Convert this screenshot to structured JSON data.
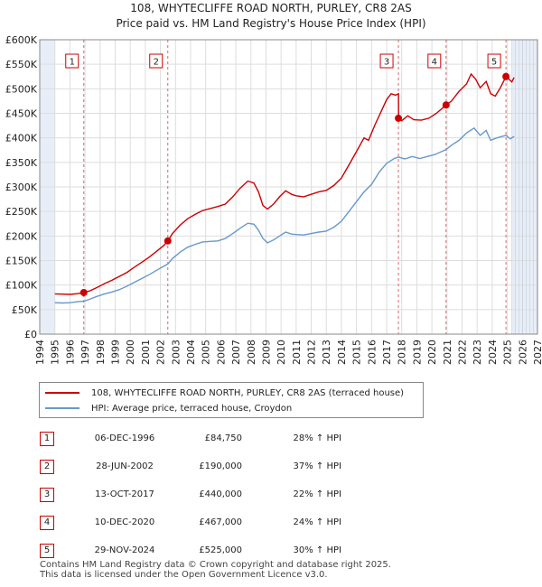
{
  "title": "108, WHYTECLIFFE ROAD NORTH, PURLEY, CR8 2AS",
  "subtitle": "Price paid vs. HM Land Registry's House Price Index (HPI)",
  "colors": {
    "property": "#cc0000",
    "hpi": "#6699cc",
    "marker_fill": "#cc0000",
    "band": "#e8eef7"
  },
  "chart_data": {
    "type": "line",
    "title": "108, WHYTECLIFFE ROAD NORTH, PURLEY, CR8 2AS",
    "xlabel": "",
    "ylabel": "",
    "xlim": [
      1994,
      2027
    ],
    "ylim": [
      0,
      600000
    ],
    "x_ticks": [
      "1994",
      "1995",
      "1996",
      "1997",
      "1998",
      "1999",
      "2000",
      "2001",
      "2002",
      "2003",
      "2004",
      "2005",
      "2006",
      "2007",
      "2008",
      "2009",
      "2010",
      "2011",
      "2012",
      "2013",
      "2014",
      "2015",
      "2016",
      "2017",
      "2018",
      "2019",
      "2020",
      "2021",
      "2022",
      "2023",
      "2024",
      "2025",
      "2026",
      "2027"
    ],
    "y_ticks": [
      {
        "value": 0,
        "label": "£0"
      },
      {
        "value": 50000,
        "label": "£50K"
      },
      {
        "value": 100000,
        "label": "£100K"
      },
      {
        "value": 150000,
        "label": "£150K"
      },
      {
        "value": 200000,
        "label": "£200K"
      },
      {
        "value": 250000,
        "label": "£250K"
      },
      {
        "value": 300000,
        "label": "£300K"
      },
      {
        "value": 350000,
        "label": "£350K"
      },
      {
        "value": 400000,
        "label": "£400K"
      },
      {
        "value": 450000,
        "label": "£450K"
      },
      {
        "value": 500000,
        "label": "£500K"
      },
      {
        "value": 550000,
        "label": "£550K"
      },
      {
        "value": 600000,
        "label": "£600K"
      }
    ],
    "shaded_ranges": [
      [
        1994,
        1995
      ],
      [
        2025.3,
        2027
      ]
    ],
    "series": [
      {
        "name": "108, WHYTECLIFFE ROAD NORTH, PURLEY, CR8 2AS (terraced house)",
        "color": "#cc0000",
        "points": [
          [
            1995,
            82000
          ],
          [
            1995.5,
            81500
          ],
          [
            1996,
            81000
          ],
          [
            1996.5,
            82500
          ],
          [
            1996.92,
            84750
          ],
          [
            1997.3,
            88000
          ],
          [
            1997.8,
            95000
          ],
          [
            1998.3,
            103000
          ],
          [
            1998.8,
            110000
          ],
          [
            1999.3,
            118000
          ],
          [
            1999.8,
            126000
          ],
          [
            2000.3,
            137000
          ],
          [
            2000.8,
            147000
          ],
          [
            2001.3,
            158000
          ],
          [
            2001.8,
            170000
          ],
          [
            2002.2,
            180000
          ],
          [
            2002.49,
            190000
          ],
          [
            2002.8,
            205000
          ],
          [
            2003.3,
            222000
          ],
          [
            2003.8,
            235000
          ],
          [
            2004.3,
            244000
          ],
          [
            2004.8,
            252000
          ],
          [
            2005.3,
            256000
          ],
          [
            2005.8,
            260000
          ],
          [
            2006.3,
            265000
          ],
          [
            2006.8,
            280000
          ],
          [
            2007.3,
            298000
          ],
          [
            2007.8,
            312000
          ],
          [
            2008.2,
            308000
          ],
          [
            2008.5,
            290000
          ],
          [
            2008.8,
            262000
          ],
          [
            2009.1,
            255000
          ],
          [
            2009.5,
            265000
          ],
          [
            2009.9,
            280000
          ],
          [
            2010.3,
            292000
          ],
          [
            2010.7,
            285000
          ],
          [
            2011.0,
            282000
          ],
          [
            2011.5,
            280000
          ],
          [
            2012.0,
            285000
          ],
          [
            2012.5,
            290000
          ],
          [
            2013.0,
            293000
          ],
          [
            2013.5,
            303000
          ],
          [
            2014.0,
            318000
          ],
          [
            2014.5,
            345000
          ],
          [
            2015.0,
            372000
          ],
          [
            2015.5,
            400000
          ],
          [
            2015.8,
            395000
          ],
          [
            2016.2,
            425000
          ],
          [
            2016.7,
            458000
          ],
          [
            2017.0,
            478000
          ],
          [
            2017.3,
            490000
          ],
          [
            2017.6,
            487000
          ],
          [
            2017.78,
            490000
          ],
          [
            2017.79,
            440000
          ],
          [
            2018.0,
            435000
          ],
          [
            2018.4,
            445000
          ],
          [
            2018.8,
            437000
          ],
          [
            2019.3,
            436000
          ],
          [
            2019.8,
            440000
          ],
          [
            2020.3,
            450000
          ],
          [
            2020.94,
            467000
          ],
          [
            2021.3,
            475000
          ],
          [
            2021.8,
            495000
          ],
          [
            2022.3,
            510000
          ],
          [
            2022.6,
            530000
          ],
          [
            2022.9,
            520000
          ],
          [
            2023.2,
            502000
          ],
          [
            2023.6,
            515000
          ],
          [
            2023.9,
            490000
          ],
          [
            2024.2,
            485000
          ],
          [
            2024.5,
            500000
          ],
          [
            2024.91,
            525000
          ],
          [
            2025.1,
            520000
          ],
          [
            2025.3,
            514000
          ],
          [
            2025.45,
            523000
          ]
        ]
      },
      {
        "name": "HPI: Average price, terraced house, Croydon",
        "color": "#6699cc",
        "points": [
          [
            1995,
            64000
          ],
          [
            1995.5,
            63500
          ],
          [
            1996,
            64000
          ],
          [
            1996.5,
            66000
          ],
          [
            1996.92,
            67000
          ],
          [
            1997.3,
            71000
          ],
          [
            1997.8,
            77000
          ],
          [
            1998.3,
            82000
          ],
          [
            1998.8,
            86000
          ],
          [
            1999.3,
            91000
          ],
          [
            1999.8,
            98000
          ],
          [
            2000.3,
            106000
          ],
          [
            2000.8,
            114000
          ],
          [
            2001.3,
            122000
          ],
          [
            2001.8,
            131000
          ],
          [
            2002.2,
            138000
          ],
          [
            2002.49,
            143000
          ],
          [
            2002.8,
            154000
          ],
          [
            2003.3,
            167000
          ],
          [
            2003.8,
            177000
          ],
          [
            2004.3,
            183000
          ],
          [
            2004.8,
            188000
          ],
          [
            2005.3,
            189000
          ],
          [
            2005.8,
            190000
          ],
          [
            2006.3,
            195000
          ],
          [
            2006.8,
            205000
          ],
          [
            2007.3,
            216000
          ],
          [
            2007.8,
            226000
          ],
          [
            2008.2,
            224000
          ],
          [
            2008.5,
            212000
          ],
          [
            2008.8,
            195000
          ],
          [
            2009.1,
            186000
          ],
          [
            2009.5,
            192000
          ],
          [
            2009.9,
            200000
          ],
          [
            2010.3,
            208000
          ],
          [
            2010.7,
            204000
          ],
          [
            2011.0,
            203000
          ],
          [
            2011.5,
            202000
          ],
          [
            2012.0,
            205000
          ],
          [
            2012.5,
            208000
          ],
          [
            2013.0,
            210000
          ],
          [
            2013.5,
            218000
          ],
          [
            2014.0,
            230000
          ],
          [
            2014.5,
            250000
          ],
          [
            2015.0,
            270000
          ],
          [
            2015.5,
            290000
          ],
          [
            2016.0,
            305000
          ],
          [
            2016.5,
            330000
          ],
          [
            2017.0,
            348000
          ],
          [
            2017.5,
            358000
          ],
          [
            2017.78,
            361000
          ],
          [
            2018.2,
            357000
          ],
          [
            2018.7,
            362000
          ],
          [
            2019.2,
            358000
          ],
          [
            2019.7,
            362000
          ],
          [
            2020.2,
            366000
          ],
          [
            2020.94,
            376000
          ],
          [
            2021.3,
            385000
          ],
          [
            2021.8,
            395000
          ],
          [
            2022.3,
            410000
          ],
          [
            2022.8,
            420000
          ],
          [
            2023.2,
            405000
          ],
          [
            2023.6,
            415000
          ],
          [
            2023.9,
            395000
          ],
          [
            2024.3,
            400000
          ],
          [
            2024.91,
            405000
          ],
          [
            2025.2,
            398000
          ],
          [
            2025.45,
            403000
          ]
        ]
      }
    ],
    "sales": [
      {
        "num": "1",
        "x": 1996.92,
        "value": 84750
      },
      {
        "num": "2",
        "x": 2002.49,
        "value": 190000
      },
      {
        "num": "3",
        "x": 2017.78,
        "value": 440000
      },
      {
        "num": "4",
        "x": 2020.94,
        "value": 467000
      },
      {
        "num": "5",
        "x": 2024.91,
        "value": 525000
      }
    ]
  },
  "legend": {
    "property": "108, WHYTECLIFFE ROAD NORTH, PURLEY, CR8 2AS (terraced house)",
    "hpi": "HPI: Average price, terraced house, Croydon"
  },
  "transactions": [
    {
      "num": "1",
      "date": "06-DEC-1996",
      "price": "£84,750",
      "hpi": "28% ↑ HPI"
    },
    {
      "num": "2",
      "date": "28-JUN-2002",
      "price": "£190,000",
      "hpi": "37% ↑ HPI"
    },
    {
      "num": "3",
      "date": "13-OCT-2017",
      "price": "£440,000",
      "hpi": "22% ↑ HPI"
    },
    {
      "num": "4",
      "date": "10-DEC-2020",
      "price": "£467,000",
      "hpi": "24% ↑ HPI"
    },
    {
      "num": "5",
      "date": "29-NOV-2024",
      "price": "£525,000",
      "hpi": "30% ↑ HPI"
    }
  ],
  "footer": {
    "line1": "Contains HM Land Registry data © Crown copyright and database right 2025.",
    "line2": "This data is licensed under the Open Government Licence v3.0."
  }
}
